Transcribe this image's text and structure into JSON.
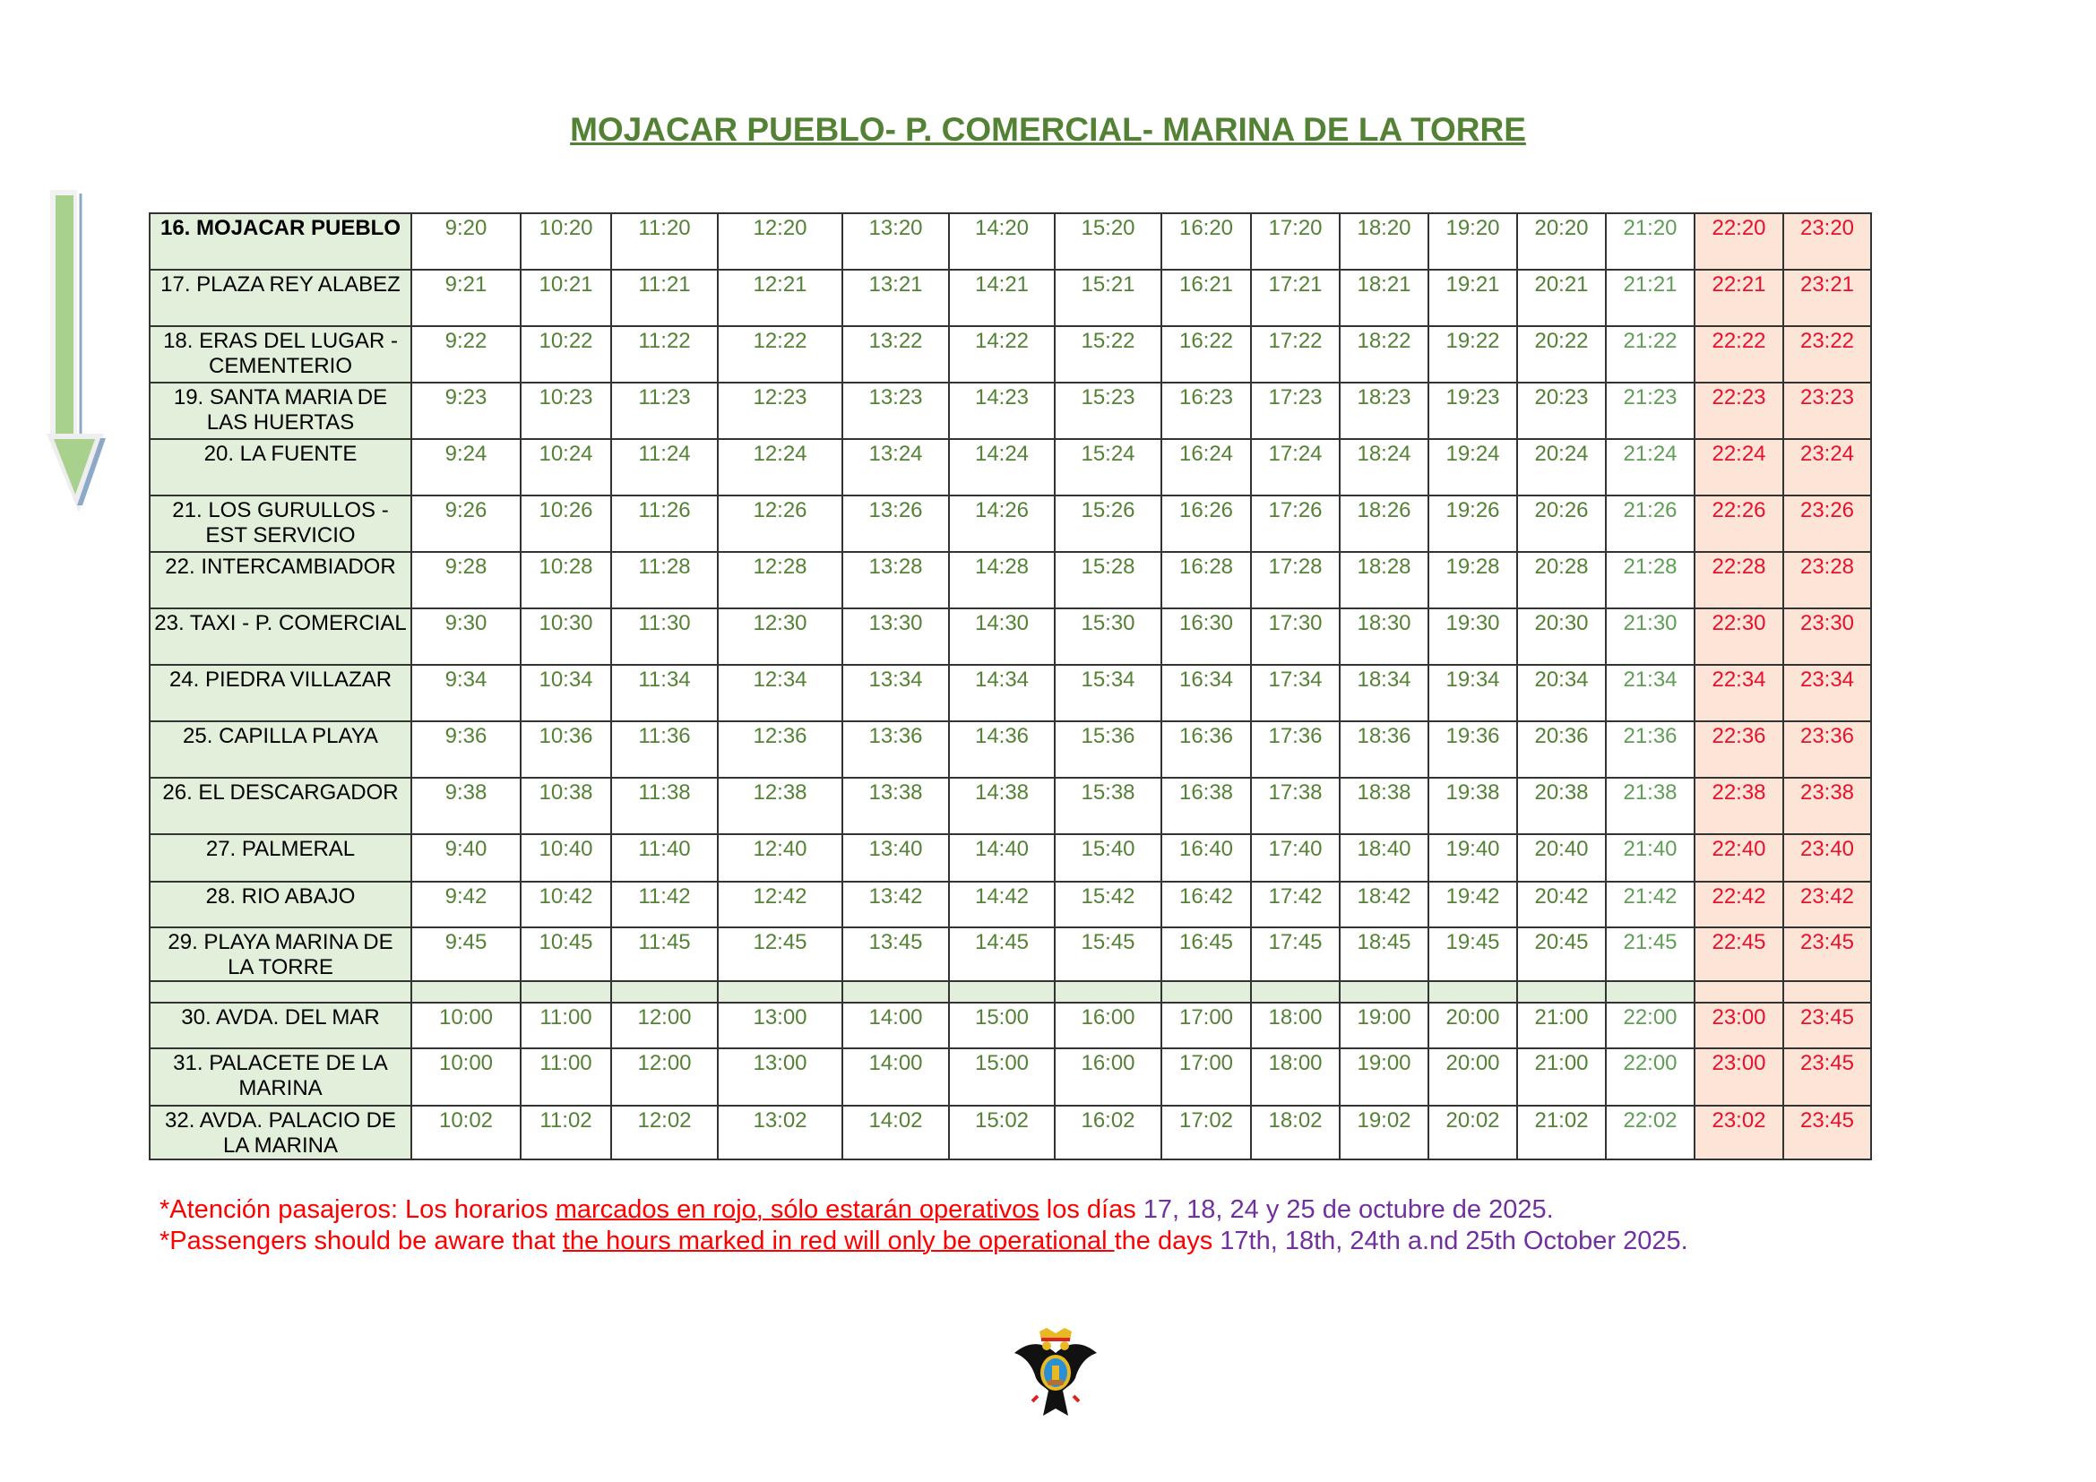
{
  "title": "MOJACAR PUEBLO- P. COMERCIAL- MARINA DE LA TORRE",
  "colors": {
    "title": "#548235",
    "times": "#548235",
    "red_times": "#e8112d",
    "stop_bg": "#e2efda",
    "red_bg": "#fce4d6",
    "dates": "#7030a0"
  },
  "icons": {
    "direction": "down-arrow-icon",
    "logo": "coat-of-arms-eagle-icon"
  },
  "red_columns": [
    13,
    14
  ],
  "stops": [
    {
      "name": "16. MOJACAR PUEBLO",
      "bold": true,
      "times": [
        "9:20",
        "10:20",
        "11:20",
        "12:20",
        "13:20",
        "14:20",
        "15:20",
        "16:20",
        "17:20",
        "18:20",
        "19:20",
        "20:20",
        "21:20",
        "22:20",
        "23:20"
      ]
    },
    {
      "name": "17. PLAZA REY ALABEZ",
      "times": [
        "9:21",
        "10:21",
        "11:21",
        "12:21",
        "13:21",
        "14:21",
        "15:21",
        "16:21",
        "17:21",
        "18:21",
        "19:21",
        "20:21",
        "21:21",
        "22:21",
        "23:21"
      ]
    },
    {
      "name": "18. ERAS DEL LUGAR - CEMENTERIO",
      "times": [
        "9:22",
        "10:22",
        "11:22",
        "12:22",
        "13:22",
        "14:22",
        "15:22",
        "16:22",
        "17:22",
        "18:22",
        "19:22",
        "20:22",
        "21:22",
        "22:22",
        "23:22"
      ]
    },
    {
      "name": "19. SANTA MARIA DE LAS HUERTAS",
      "times": [
        "9:23",
        "10:23",
        "11:23",
        "12:23",
        "13:23",
        "14:23",
        "15:23",
        "16:23",
        "17:23",
        "18:23",
        "19:23",
        "20:23",
        "21:23",
        "22:23",
        "23:23"
      ]
    },
    {
      "name": "20. LA FUENTE",
      "times": [
        "9:24",
        "10:24",
        "11:24",
        "12:24",
        "13:24",
        "14:24",
        "15:24",
        "16:24",
        "17:24",
        "18:24",
        "19:24",
        "20:24",
        "21:24",
        "22:24",
        "23:24"
      ]
    },
    {
      "name": "21. LOS GURULLOS - EST SERVICIO",
      "times": [
        "9:26",
        "10:26",
        "11:26",
        "12:26",
        "13:26",
        "14:26",
        "15:26",
        "16:26",
        "17:26",
        "18:26",
        "19:26",
        "20:26",
        "21:26",
        "22:26",
        "23:26"
      ]
    },
    {
      "name": "22. INTERCAMBIADOR",
      "times": [
        "9:28",
        "10:28",
        "11:28",
        "12:28",
        "13:28",
        "14:28",
        "15:28",
        "16:28",
        "17:28",
        "18:28",
        "19:28",
        "20:28",
        "21:28",
        "22:28",
        "23:28"
      ]
    },
    {
      "name": "23. TAXI - P. COMERCIAL",
      "times": [
        "9:30",
        "10:30",
        "11:30",
        "12:30",
        "13:30",
        "14:30",
        "15:30",
        "16:30",
        "17:30",
        "18:30",
        "19:30",
        "20:30",
        "21:30",
        "22:30",
        "23:30"
      ]
    },
    {
      "name": "24.  PIEDRA VILLAZAR",
      "times": [
        "9:34",
        "10:34",
        "11:34",
        "12:34",
        "13:34",
        "14:34",
        "15:34",
        "16:34",
        "17:34",
        "18:34",
        "19:34",
        "20:34",
        "21:34",
        "22:34",
        "23:34"
      ]
    },
    {
      "name": "25.  CAPILLA PLAYA",
      "times": [
        "9:36",
        "10:36",
        "11:36",
        "12:36",
        "13:36",
        "14:36",
        "15:36",
        "16:36",
        "17:36",
        "18:36",
        "19:36",
        "20:36",
        "21:36",
        "22:36",
        "23:36"
      ]
    },
    {
      "name": "26.  EL DESCARGADOR",
      "times": [
        "9:38",
        "10:38",
        "11:38",
        "12:38",
        "13:38",
        "14:38",
        "15:38",
        "16:38",
        "17:38",
        "18:38",
        "19:38",
        "20:38",
        "21:38",
        "22:38",
        "23:38"
      ]
    },
    {
      "name": "27. PALMERAL",
      "times": [
        "9:40",
        "10:40",
        "11:40",
        "12:40",
        "13:40",
        "14:40",
        "15:40",
        "16:40",
        "17:40",
        "18:40",
        "19:40",
        "20:40",
        "21:40",
        "22:40",
        "23:40"
      ]
    },
    {
      "name": "28. RIO ABAJO",
      "times": [
        "9:42",
        "10:42",
        "11:42",
        "12:42",
        "13:42",
        "14:42",
        "15:42",
        "16:42",
        "17:42",
        "18:42",
        "19:42",
        "20:42",
        "21:42",
        "22:42",
        "23:42"
      ]
    },
    {
      "name": "29. PLAYA MARINA DE LA TORRE",
      "times": [
        "9:45",
        "10:45",
        "11:45",
        "12:45",
        "13:45",
        "14:45",
        "15:45",
        "16:45",
        "17:45",
        "18:45",
        "19:45",
        "20:45",
        "21:45",
        "22:45",
        "23:45"
      ]
    },
    {
      "name": "",
      "blank": true,
      "times": [
        "",
        "",
        "",
        "",
        "",
        "",
        "",
        "",
        "",
        "",
        "",
        "",
        "",
        "",
        ""
      ]
    },
    {
      "name": "30. AVDA. DEL MAR",
      "times": [
        "10:00",
        "11:00",
        "12:00",
        "13:00",
        "14:00",
        "15:00",
        "16:00",
        "17:00",
        "18:00",
        "19:00",
        "20:00",
        "21:00",
        "22:00",
        "23:00",
        "23:45"
      ]
    },
    {
      "name": "31. PALACETE DE LA MARINA",
      "times": [
        "10:00",
        "11:00",
        "12:00",
        "13:00",
        "14:00",
        "15:00",
        "16:00",
        "17:00",
        "18:00",
        "19:00",
        "20:00",
        "21:00",
        "22:00",
        "23:00",
        "23:45"
      ]
    },
    {
      "name": "32. AVDA. PALACIO DE LA MARINA",
      "times": [
        "10:02",
        "11:02",
        "12:02",
        "13:02",
        "14:02",
        "15:02",
        "16:02",
        "17:02",
        "18:02",
        "19:02",
        "20:02",
        "21:02",
        "22:02",
        "23:02",
        "23:45"
      ]
    }
  ],
  "notes": {
    "es": {
      "a": "*Atención pasajeros: Los horarios ",
      "b": "marcados en rojo, sólo estarán operativos",
      "c": " los días ",
      "d": "17, 18, 24 y 25 de octubre de 2025."
    },
    "en": {
      "a": "*Passengers should be aware that ",
      "b": "the hours marked in red will only be operational ",
      "c": " the days ",
      "d": "17th, 18th, 24th a.nd 25th October 2025."
    }
  }
}
